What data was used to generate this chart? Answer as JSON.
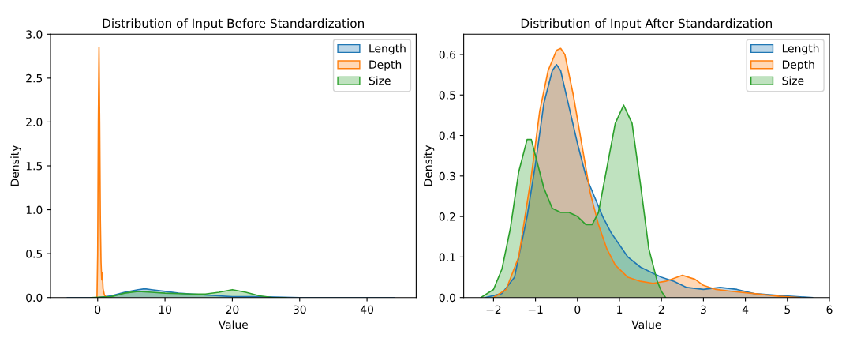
{
  "chart_data": [
    {
      "type": "area",
      "title": "Distribution of Input Before Standardization",
      "xlabel": "Value",
      "ylabel": "Density",
      "xlim": [
        -7,
        47.3
      ],
      "ylim": [
        0,
        3.0
      ],
      "xticks": [
        0,
        10,
        20,
        30,
        40
      ],
      "yticks": [
        {
          "value": 0,
          "label": "0.0"
        },
        0.5,
        {
          "value": 1,
          "label": "1.0"
        },
        1.5,
        {
          "value": 2,
          "label": "2.0"
        },
        2.5,
        {
          "value": 3,
          "label": "3.0"
        }
      ],
      "legend": "top right",
      "grid": false,
      "series": [
        {
          "name": "Length",
          "color": "#1f77b4",
          "x": [
            -4.5,
            0,
            2,
            4,
            6,
            7,
            8,
            10,
            12,
            14,
            16,
            18,
            20,
            24,
            30,
            44
          ],
          "values": [
            0,
            0,
            0.02,
            0.06,
            0.09,
            0.1,
            0.09,
            0.07,
            0.05,
            0.04,
            0.03,
            0.02,
            0.01,
            0.01,
            0,
            0
          ]
        },
        {
          "name": "Depth",
          "color": "#ff7f0e",
          "x": [
            -0.1,
            0,
            0.1,
            0.2,
            0.3,
            0.4,
            0.5,
            0.6,
            0.7,
            0.8,
            1.0,
            1.3
          ],
          "values": [
            0,
            0.5,
            2.0,
            2.85,
            2.0,
            0.9,
            0.4,
            0.2,
            0.28,
            0.1,
            0.03,
            0
          ]
        },
        {
          "name": "Size",
          "color": "#2ca02c",
          "x": [
            -1,
            2,
            4,
            6,
            8,
            10,
            14,
            16,
            18,
            20,
            22,
            24,
            26,
            28
          ],
          "values": [
            0,
            0.01,
            0.05,
            0.07,
            0.06,
            0.05,
            0.04,
            0.04,
            0.06,
            0.09,
            0.06,
            0.02,
            0,
            0
          ]
        }
      ]
    },
    {
      "type": "area",
      "title": "Distribution of Input After Standardization",
      "xlabel": "Value",
      "ylabel": "Density",
      "xlim": [
        -2.71,
        6
      ],
      "ylim": [
        0,
        0.65
      ],
      "xticks": [
        -2,
        -1,
        0,
        1,
        2,
        3,
        4,
        5,
        6
      ],
      "yticks": [
        {
          "value": 0,
          "label": "0.0"
        },
        0.1,
        0.2,
        0.3,
        0.4,
        0.5,
        0.6
      ],
      "legend": "top right",
      "grid": false,
      "series": [
        {
          "name": "Length",
          "color": "#1f77b4",
          "x": [
            -2.2,
            -1.8,
            -1.5,
            -1.2,
            -1.0,
            -0.8,
            -0.6,
            -0.5,
            -0.4,
            -0.2,
            0,
            0.2,
            0.4,
            0.6,
            0.8,
            1.0,
            1.2,
            1.5,
            1.8,
            2.0,
            2.3,
            2.6,
            3.0,
            3.4,
            3.8,
            4.2,
            4.8,
            5.6
          ],
          "values": [
            0,
            0.01,
            0.05,
            0.2,
            0.33,
            0.48,
            0.56,
            0.575,
            0.56,
            0.47,
            0.38,
            0.3,
            0.25,
            0.2,
            0.16,
            0.13,
            0.1,
            0.075,
            0.06,
            0.05,
            0.04,
            0.025,
            0.02,
            0.025,
            0.02,
            0.01,
            0.005,
            0
          ]
        },
        {
          "name": "Depth",
          "color": "#ff7f0e",
          "x": [
            -2.0,
            -1.7,
            -1.4,
            -1.1,
            -0.9,
            -0.7,
            -0.5,
            -0.4,
            -0.3,
            -0.1,
            0.1,
            0.3,
            0.5,
            0.7,
            0.9,
            1.2,
            1.5,
            1.8,
            2.1,
            2.5,
            2.8,
            3.0,
            3.3,
            3.7,
            4.2,
            4.8,
            5.3
          ],
          "values": [
            0,
            0.02,
            0.1,
            0.3,
            0.46,
            0.56,
            0.61,
            0.615,
            0.6,
            0.5,
            0.38,
            0.26,
            0.18,
            0.12,
            0.08,
            0.05,
            0.04,
            0.035,
            0.04,
            0.055,
            0.045,
            0.03,
            0.02,
            0.015,
            0.01,
            0.003,
            0
          ]
        },
        {
          "name": "Size",
          "color": "#2ca02c",
          "x": [
            -2.3,
            -2.0,
            -1.8,
            -1.6,
            -1.4,
            -1.2,
            -1.1,
            -1.0,
            -0.8,
            -0.6,
            -0.4,
            -0.2,
            0,
            0.2,
            0.35,
            0.5,
            0.7,
            0.9,
            1.1,
            1.3,
            1.5,
            1.7,
            1.9,
            2.0,
            2.1
          ],
          "values": [
            0,
            0.02,
            0.07,
            0.17,
            0.31,
            0.39,
            0.39,
            0.35,
            0.27,
            0.22,
            0.21,
            0.21,
            0.2,
            0.18,
            0.18,
            0.21,
            0.32,
            0.43,
            0.475,
            0.43,
            0.28,
            0.12,
            0.04,
            0.015,
            0
          ]
        }
      ]
    }
  ]
}
